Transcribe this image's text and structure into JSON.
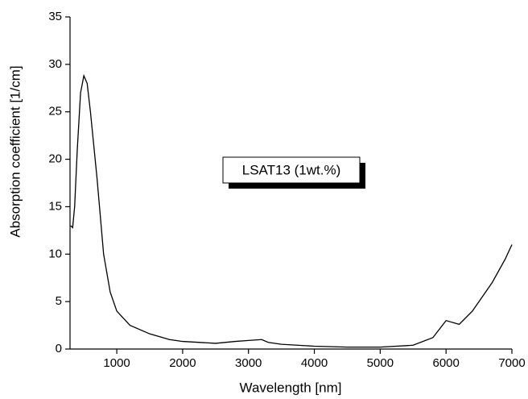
{
  "chart_data": {
    "type": "line",
    "x_label": "Wavelength [nm]",
    "y_label": "Absorption coefficient [1/cm]",
    "annotation": "LSAT13 (1wt.%)",
    "xlim": [
      290,
      7000
    ],
    "ylim": [
      0,
      35
    ],
    "xticks": [
      1000,
      2000,
      3000,
      4000,
      5000,
      6000,
      7000
    ],
    "yticks": [
      0,
      5,
      10,
      15,
      20,
      25,
      30,
      35
    ],
    "series": [
      {
        "color": "#000000",
        "x": [
          300,
          330,
          360,
          400,
          450,
          500,
          550,
          600,
          700,
          800,
          900,
          1000,
          1200,
          1500,
          1800,
          2000,
          2500,
          2800,
          3000,
          3200,
          3300,
          3500,
          4000,
          4500,
          5000,
          5500,
          5800,
          6000,
          6200,
          6400,
          6700,
          6900,
          7000
        ],
        "values": [
          13,
          12.8,
          15,
          21,
          27,
          28.8,
          28,
          25,
          18,
          10,
          6,
          4,
          2.5,
          1.6,
          1.0,
          0.8,
          0.6,
          0.8,
          0.9,
          1.0,
          0.7,
          0.5,
          0.3,
          0.2,
          0.2,
          0.4,
          1.2,
          3.0,
          2.6,
          4,
          7,
          9.5,
          11
        ]
      }
    ]
  }
}
